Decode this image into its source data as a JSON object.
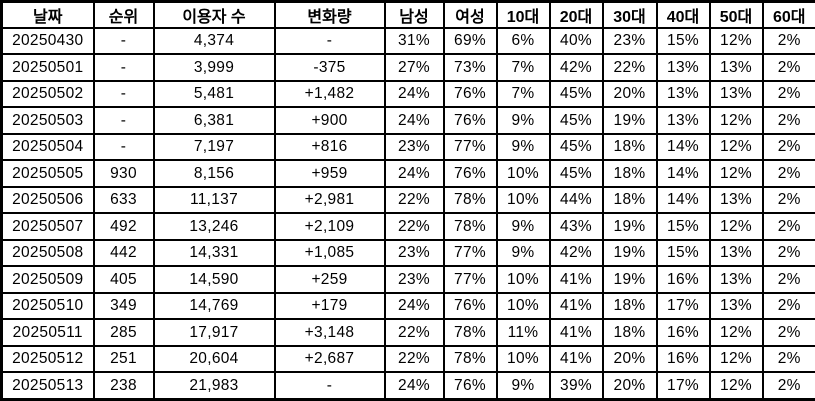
{
  "colors": {
    "positive_red": "#f20000",
    "negative_blue": "#0d14f2",
    "text": "#000000",
    "border": "#000000",
    "background": "#ffffff"
  },
  "chart_data": {
    "type": "table",
    "title": "",
    "columns": [
      "날짜",
      "순위",
      "이용자 수",
      "변화량",
      "남성",
      "여성",
      "10대",
      "20대",
      "30대",
      "40대",
      "50대",
      "60대"
    ],
    "column_keys": [
      "date",
      "rank",
      "users",
      "change",
      "male-pct",
      "female-pct",
      "age10-pct",
      "age20-pct",
      "age30-pct",
      "age40-pct",
      "age50-pct",
      "age60-pct"
    ],
    "rows": [
      {
        "cells": [
          "20250430",
          "-",
          "4,374",
          "-",
          "31%",
          "69%",
          "6%",
          "40%",
          "23%",
          "15%",
          "12%",
          "2%"
        ],
        "date_color": null,
        "change_color": null
      },
      {
        "cells": [
          "20250501",
          "-",
          "3,999",
          "-375",
          "27%",
          "73%",
          "7%",
          "42%",
          "22%",
          "13%",
          "13%",
          "2%"
        ],
        "date_color": null,
        "change_color": "blue"
      },
      {
        "cells": [
          "20250502",
          "-",
          "5,481",
          "+1,482",
          "24%",
          "76%",
          "7%",
          "45%",
          "20%",
          "13%",
          "13%",
          "2%"
        ],
        "date_color": null,
        "change_color": "red"
      },
      {
        "cells": [
          "20250503",
          "-",
          "6,381",
          "+900",
          "24%",
          "76%",
          "9%",
          "45%",
          "19%",
          "13%",
          "12%",
          "2%"
        ],
        "date_color": "blue",
        "change_color": "red"
      },
      {
        "cells": [
          "20250504",
          "-",
          "7,197",
          "+816",
          "23%",
          "77%",
          "9%",
          "45%",
          "18%",
          "14%",
          "12%",
          "2%"
        ],
        "date_color": "red",
        "change_color": "red"
      },
      {
        "cells": [
          "20250505",
          "930",
          "8,156",
          "+959",
          "24%",
          "76%",
          "10%",
          "45%",
          "18%",
          "14%",
          "12%",
          "2%"
        ],
        "date_color": null,
        "change_color": "red"
      },
      {
        "cells": [
          "20250506",
          "633",
          "11,137",
          "+2,981",
          "22%",
          "78%",
          "10%",
          "44%",
          "18%",
          "14%",
          "13%",
          "2%"
        ],
        "date_color": null,
        "change_color": "red"
      },
      {
        "cells": [
          "20250507",
          "492",
          "13,246",
          "+2,109",
          "22%",
          "78%",
          "9%",
          "43%",
          "19%",
          "15%",
          "12%",
          "2%"
        ],
        "date_color": null,
        "change_color": "red"
      },
      {
        "cells": [
          "20250508",
          "442",
          "14,331",
          "+1,085",
          "23%",
          "77%",
          "9%",
          "42%",
          "19%",
          "15%",
          "13%",
          "2%"
        ],
        "date_color": null,
        "change_color": "red"
      },
      {
        "cells": [
          "20250509",
          "405",
          "14,590",
          "+259",
          "23%",
          "77%",
          "10%",
          "41%",
          "19%",
          "16%",
          "13%",
          "2%"
        ],
        "date_color": null,
        "change_color": "red"
      },
      {
        "cells": [
          "20250510",
          "349",
          "14,769",
          "+179",
          "24%",
          "76%",
          "10%",
          "41%",
          "18%",
          "17%",
          "13%",
          "2%"
        ],
        "date_color": "blue",
        "change_color": "red"
      },
      {
        "cells": [
          "20250511",
          "285",
          "17,917",
          "+3,148",
          "22%",
          "78%",
          "11%",
          "41%",
          "18%",
          "16%",
          "12%",
          "2%"
        ],
        "date_color": "red",
        "change_color": "red"
      },
      {
        "cells": [
          "20250512",
          "251",
          "20,604",
          "+2,687",
          "22%",
          "78%",
          "10%",
          "41%",
          "20%",
          "16%",
          "12%",
          "2%"
        ],
        "date_color": null,
        "change_color": "red"
      },
      {
        "cells": [
          "20250513",
          "238",
          "21,983",
          "-",
          "24%",
          "76%",
          "9%",
          "39%",
          "20%",
          "17%",
          "12%",
          "2%"
        ],
        "date_color": null,
        "change_color": null
      }
    ]
  }
}
